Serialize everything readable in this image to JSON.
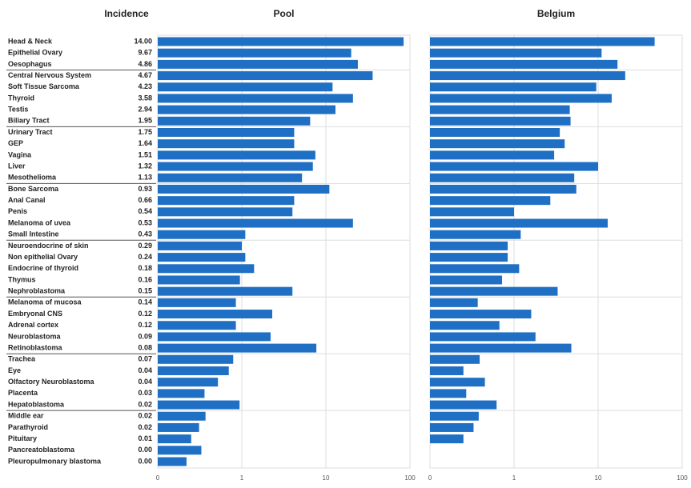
{
  "chart_data": {
    "type": "bar",
    "orientation": "horizontal",
    "column_header": "Incidence",
    "categories": [
      "Head & Neck",
      "Epithelial Ovary",
      "Oesophagus",
      "Central Nervous System",
      "Soft Tissue Sarcoma",
      "Thyroid",
      "Testis",
      "Biliary Tract",
      "Urinary Tract",
      "GEP",
      "Vagina",
      "Liver",
      "Mesothelioma",
      "Bone Sarcoma",
      "Anal Canal",
      "Penis",
      "Melanoma of uvea",
      "Small Intestine",
      "Neuroendocrine of skin",
      "Non epithelial Ovary",
      "Endocrine of thyroid",
      "Thymus",
      "Nephroblastoma",
      "Melanoma of mucosa",
      "Embryonal CNS",
      "Adrenal cortex",
      "Neuroblastoma",
      "Retinoblastoma",
      "Trachea",
      "Eye",
      "Olfactory Neuroblastoma",
      "Placenta",
      "Hepatoblastoma",
      "Middle ear",
      "Parathyroid",
      "Pituitary",
      "Pancreatoblastoma",
      "Pleuropulmonary blastoma"
    ],
    "incidence": [
      "14.00",
      "9.67",
      "4.86",
      "4.67",
      "4.23",
      "3.58",
      "2.94",
      "1.95",
      "1.75",
      "1.64",
      "1.51",
      "1.32",
      "1.13",
      "0.93",
      "0.66",
      "0.54",
      "0.53",
      "0.43",
      "0.29",
      "0.24",
      "0.18",
      "0.16",
      "0.15",
      "0.14",
      "0.12",
      "0.12",
      "0.09",
      "0.08",
      "0.07",
      "0.04",
      "0.04",
      "0.03",
      "0.02",
      "0.02",
      "0.02",
      "0.01",
      "0.00",
      "0.00"
    ],
    "series": [
      {
        "name": "Pool",
        "color": "#1f6fc5",
        "values": [
          84,
          20,
          24,
          36,
          12,
          21,
          13,
          6.5,
          4.2,
          4.2,
          7.5,
          7,
          5.2,
          11,
          4.2,
          4,
          21,
          1.1,
          1.0,
          1.1,
          1.4,
          0.95,
          4,
          0.85,
          2.3,
          0.85,
          2.2,
          7.7,
          0.79,
          0.7,
          0.52,
          0.36,
          0.94,
          0.37,
          0.31,
          0.25,
          0.33,
          0.22
        ]
      },
      {
        "name": "Belgium",
        "color": "#1f6fc5",
        "values": [
          47,
          11,
          17,
          21,
          9.5,
          14.5,
          4.6,
          4.7,
          3.5,
          4,
          3,
          10,
          5.2,
          5.5,
          2.7,
          1,
          13,
          1.2,
          0.84,
          0.84,
          1.15,
          0.72,
          3.3,
          0.37,
          1.6,
          0.67,
          1.8,
          4.8,
          0.39,
          0.25,
          0.45,
          0.27,
          0.62,
          0.38,
          0.33,
          0.25,
          null,
          null
        ]
      }
    ],
    "xlim": [
      0.1,
      100
    ],
    "xticks": [
      {
        "value": 0.1,
        "label": "0"
      },
      1,
      10,
      100
    ],
    "log_x": true,
    "grid": true
  }
}
